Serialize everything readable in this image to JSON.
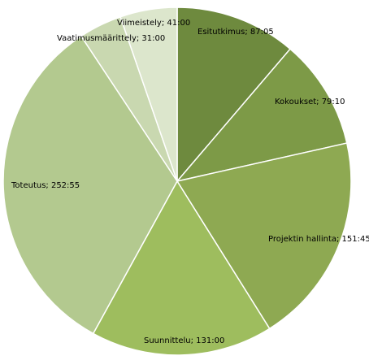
{
  "chart_data": {
    "type": "pie",
    "start": "top",
    "direction": "clockwise",
    "legend": "none",
    "slices": [
      {
        "label": "Esitutkimus; 87:05",
        "value": 87.0833,
        "color": "#6e8a3e"
      },
      {
        "label": "Kokoukset; 79:10",
        "value": 79.1667,
        "color": "#7d9a47"
      },
      {
        "label": "Projektin hallinta; 151:45",
        "value": 151.75,
        "color": "#8ea952"
      },
      {
        "label": "Suunnittelu; 131:00",
        "value": 131.0,
        "color": "#9ebd5e"
      },
      {
        "label": "Toteutus; 252:55",
        "value": 252.9167,
        "color": "#b3c98f"
      },
      {
        "label": "Vaatimusmäärittely; 31:00",
        "value": 31.0,
        "color": "#c9d8b0"
      },
      {
        "label": "Viimeistely; 41:00",
        "value": 41.0,
        "color": "#dce6cc"
      }
    ]
  }
}
